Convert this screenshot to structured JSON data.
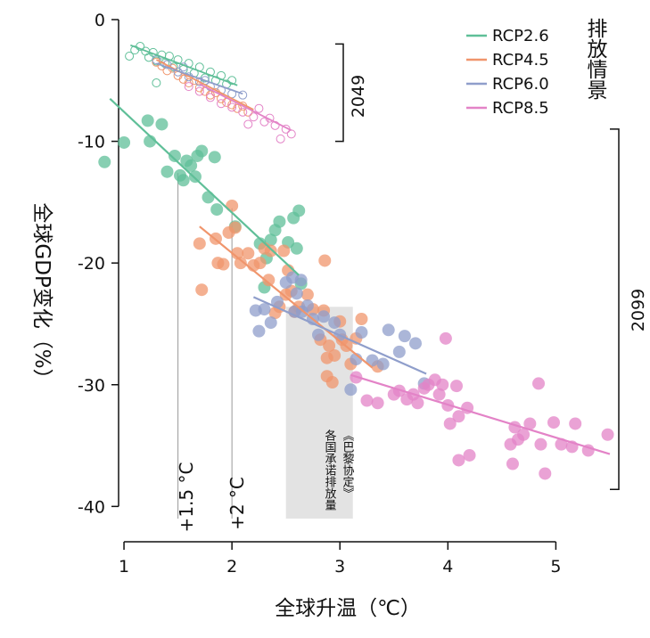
{
  "chart_data": {
    "type": "scatter",
    "xlabel": "全球升温（℃）",
    "ylabel": "全球GDP变化（%）",
    "xlim": [
      0.95,
      5.55
    ],
    "ylim": [
      -41,
      0
    ],
    "x_ticks": [
      "1",
      "2",
      "3",
      "4",
      "5"
    ],
    "y_ticks": [
      "0",
      "-10",
      "-20",
      "-30",
      "-40"
    ],
    "legend_title": "排放情景",
    "series": [
      {
        "name": "RCP2.6",
        "color": "#5fbf98",
        "points_2099": [
          [
            0.82,
            -11.7
          ],
          [
            1.0,
            -10.1
          ],
          [
            1.22,
            -8.3
          ],
          [
            1.24,
            -10.0
          ],
          [
            1.35,
            -8.6
          ],
          [
            1.4,
            -12.5
          ],
          [
            1.47,
            -11.2
          ],
          [
            1.52,
            -12.8
          ],
          [
            1.55,
            -13.2
          ],
          [
            1.58,
            -11.6
          ],
          [
            1.62,
            -12.0
          ],
          [
            1.66,
            -12.9
          ],
          [
            1.68,
            -11.2
          ],
          [
            1.72,
            -10.8
          ],
          [
            1.78,
            -14.6
          ],
          [
            1.84,
            -11.3
          ],
          [
            1.86,
            -15.6
          ],
          [
            2.03,
            -17.0
          ],
          [
            2.26,
            -18.4
          ],
          [
            2.3,
            -22.0
          ],
          [
            2.32,
            -19.6
          ],
          [
            2.36,
            -18.1
          ],
          [
            2.4,
            -17.3
          ],
          [
            2.44,
            -16.6
          ],
          [
            2.52,
            -18.3
          ],
          [
            2.57,
            -16.3
          ],
          [
            2.62,
            -15.7
          ],
          [
            2.6,
            -18.8
          ],
          [
            2.64,
            -21.7
          ]
        ],
        "points_2049": [
          [
            1.05,
            -3.0
          ],
          [
            1.1,
            -2.5
          ],
          [
            1.15,
            -2.2
          ],
          [
            1.2,
            -2.6
          ],
          [
            1.23,
            -3.1
          ],
          [
            1.27,
            -2.7
          ],
          [
            1.3,
            -3.4
          ],
          [
            1.35,
            -2.9
          ],
          [
            1.38,
            -3.6
          ],
          [
            1.42,
            -3.0
          ],
          [
            1.46,
            -3.9
          ],
          [
            1.5,
            -3.3
          ],
          [
            1.55,
            -4.1
          ],
          [
            1.6,
            -3.6
          ],
          [
            1.65,
            -4.4
          ],
          [
            1.7,
            -3.9
          ],
          [
            1.75,
            -4.8
          ],
          [
            1.8,
            -4.3
          ],
          [
            1.85,
            -5.0
          ],
          [
            1.9,
            -4.6
          ],
          [
            1.95,
            -5.3
          ],
          [
            2.0,
            -5.0
          ],
          [
            1.3,
            -5.2
          ]
        ],
        "trend_2099": [
          [
            0.87,
            -6.5
          ],
          [
            2.62,
            -21.0
          ]
        ],
        "trend_2049": [
          [
            1.06,
            -2.1
          ],
          [
            2.05,
            -5.4
          ]
        ]
      },
      {
        "name": "RCP4.5",
        "color": "#f0956c",
        "points_2099": [
          [
            1.7,
            -18.4
          ],
          [
            1.72,
            -22.2
          ],
          [
            1.85,
            -18.0
          ],
          [
            1.87,
            -20.0
          ],
          [
            1.92,
            -20.1
          ],
          [
            1.97,
            -17.5
          ],
          [
            2.0,
            -15.3
          ],
          [
            2.03,
            -17.1
          ],
          [
            2.05,
            -19.2
          ],
          [
            2.08,
            -20.0
          ],
          [
            2.15,
            -19.2
          ],
          [
            2.2,
            -20.2
          ],
          [
            2.26,
            -20.0
          ],
          [
            2.3,
            -18.8
          ],
          [
            2.34,
            -21.4
          ],
          [
            2.36,
            -19.0
          ],
          [
            2.4,
            -24.1
          ],
          [
            2.44,
            -23.6
          ],
          [
            2.48,
            -19.0
          ],
          [
            2.5,
            -22.6
          ],
          [
            2.52,
            -20.6
          ],
          [
            2.55,
            -22.3
          ],
          [
            2.58,
            -24.0
          ],
          [
            2.62,
            -23.6
          ],
          [
            2.7,
            -22.6
          ],
          [
            2.75,
            -23.8
          ],
          [
            2.82,
            -26.3
          ],
          [
            2.85,
            -23.9
          ],
          [
            2.88,
            -29.3
          ],
          [
            2.9,
            -26.8
          ],
          [
            2.95,
            -27.6
          ],
          [
            3.0,
            -24.8
          ],
          [
            3.02,
            -26.3
          ],
          [
            3.06,
            -26.8
          ],
          [
            3.1,
            -28.3
          ],
          [
            3.15,
            -26.2
          ],
          [
            3.2,
            -24.6
          ],
          [
            3.35,
            -28.5
          ],
          [
            2.88,
            -27.8
          ],
          [
            2.93,
            -29.8
          ],
          [
            2.86,
            -19.8
          ]
        ],
        "points_2049": [
          [
            1.3,
            -3.5
          ],
          [
            1.35,
            -3.8
          ],
          [
            1.4,
            -4.2
          ],
          [
            1.45,
            -4.0
          ],
          [
            1.5,
            -4.6
          ],
          [
            1.55,
            -4.9
          ],
          [
            1.6,
            -5.2
          ],
          [
            1.65,
            -5.0
          ],
          [
            1.7,
            -5.6
          ],
          [
            1.75,
            -5.9
          ],
          [
            1.8,
            -6.2
          ],
          [
            1.85,
            -6.0
          ],
          [
            1.9,
            -6.5
          ],
          [
            1.95,
            -6.8
          ],
          [
            2.0,
            -7.0
          ],
          [
            2.05,
            -7.3
          ],
          [
            2.1,
            -7.1
          ],
          [
            2.15,
            -7.6
          ]
        ],
        "trend_2099": [
          [
            1.7,
            -17.0
          ],
          [
            3.3,
            -28.6
          ]
        ],
        "trend_2049": [
          [
            1.3,
            -3.3
          ],
          [
            2.2,
            -7.4
          ]
        ]
      },
      {
        "name": "RCP6.0",
        "color": "#8f9ecb",
        "points_2099": [
          [
            2.22,
            -23.9
          ],
          [
            2.25,
            -25.6
          ],
          [
            2.3,
            -23.8
          ],
          [
            2.36,
            -24.9
          ],
          [
            2.42,
            -23.2
          ],
          [
            2.5,
            -21.6
          ],
          [
            2.56,
            -21.2
          ],
          [
            2.6,
            -22.5
          ],
          [
            2.65,
            -24.0
          ],
          [
            2.7,
            -23.5
          ],
          [
            2.75,
            -24.6
          ],
          [
            2.8,
            -25.9
          ],
          [
            2.85,
            -24.4
          ],
          [
            2.95,
            -24.9
          ],
          [
            3.0,
            -25.9
          ],
          [
            3.1,
            -30.4
          ],
          [
            3.15,
            -27.9
          ],
          [
            3.2,
            -25.7
          ],
          [
            3.3,
            -28.0
          ],
          [
            3.4,
            -28.3
          ],
          [
            3.45,
            -25.5
          ],
          [
            3.55,
            -27.3
          ],
          [
            3.6,
            -26.0
          ],
          [
            3.7,
            -26.6
          ],
          [
            3.78,
            -29.9
          ],
          [
            2.64,
            -21.4
          ],
          [
            2.58,
            -24.0
          ]
        ],
        "points_2049": [
          [
            1.3,
            -3.3
          ],
          [
            1.4,
            -3.7
          ],
          [
            1.5,
            -4.3
          ],
          [
            1.6,
            -4.7
          ],
          [
            1.7,
            -5.1
          ],
          [
            1.8,
            -5.5
          ],
          [
            1.9,
            -5.8
          ],
          [
            2.0,
            -6.1
          ],
          [
            2.1,
            -6.2
          ],
          [
            1.55,
            -3.9
          ],
          [
            1.75,
            -5.0
          ]
        ],
        "trend_2099": [
          [
            2.2,
            -22.8
          ],
          [
            3.8,
            -29.1
          ]
        ],
        "trend_2049": [
          [
            1.3,
            -3.6
          ],
          [
            2.1,
            -6.1
          ]
        ]
      },
      {
        "name": "RCP8.5",
        "color": "#e383c7",
        "points_2099": [
          [
            3.15,
            -29.4
          ],
          [
            3.25,
            -31.3
          ],
          [
            3.35,
            -31.5
          ],
          [
            3.5,
            -30.8
          ],
          [
            3.55,
            -30.5
          ],
          [
            3.62,
            -31.2
          ],
          [
            3.68,
            -30.8
          ],
          [
            3.72,
            -31.5
          ],
          [
            3.78,
            -30.3
          ],
          [
            3.82,
            -30.0
          ],
          [
            3.88,
            -29.6
          ],
          [
            3.92,
            -30.8
          ],
          [
            3.95,
            -30.0
          ],
          [
            3.98,
            -26.2
          ],
          [
            4.0,
            -31.7
          ],
          [
            4.02,
            -33.2
          ],
          [
            4.08,
            -30.1
          ],
          [
            4.1,
            -32.6
          ],
          [
            4.18,
            -31.9
          ],
          [
            4.2,
            -35.8
          ],
          [
            4.1,
            -36.2
          ],
          [
            4.58,
            -34.9
          ],
          [
            4.62,
            -33.5
          ],
          [
            4.6,
            -36.5
          ],
          [
            4.65,
            -34.5
          ],
          [
            4.7,
            -34.1
          ],
          [
            4.76,
            -33.2
          ],
          [
            4.84,
            -29.9
          ],
          [
            4.86,
            -34.9
          ],
          [
            4.9,
            -37.3
          ],
          [
            4.98,
            -33.1
          ],
          [
            5.05,
            -34.9
          ],
          [
            5.15,
            -35.1
          ],
          [
            5.18,
            -33.2
          ],
          [
            5.3,
            -35.4
          ],
          [
            5.48,
            -34.1
          ]
        ],
        "points_2049": [
          [
            1.6,
            -5.5
          ],
          [
            1.7,
            -5.9
          ],
          [
            1.8,
            -6.4
          ],
          [
            1.9,
            -6.9
          ],
          [
            2.0,
            -7.2
          ],
          [
            2.1,
            -7.6
          ],
          [
            2.2,
            -8.0
          ],
          [
            2.3,
            -8.4
          ],
          [
            2.4,
            -8.7
          ],
          [
            2.5,
            -9.0
          ],
          [
            2.55,
            -9.4
          ],
          [
            2.45,
            -9.8
          ],
          [
            2.35,
            -8.1
          ],
          [
            2.25,
            -7.3
          ],
          [
            2.15,
            -8.6
          ]
        ],
        "trend_2099": [
          [
            3.1,
            -29.2
          ],
          [
            5.5,
            -35.7
          ]
        ],
        "trend_2049": [
          [
            1.7,
            -5.3
          ],
          [
            2.55,
            -9.1
          ]
        ]
      }
    ],
    "annotations": {
      "vline_15": {
        "x": 1.5,
        "label": "+1.5 °C"
      },
      "vline_2": {
        "x": 2.0,
        "label": "+2 °C"
      },
      "band": {
        "x_range": [
          2.5,
          3.12
        ],
        "label_line1": "各国承诺排放量",
        "label_line2": "《巴黎协定》"
      },
      "bracket_2049": {
        "y_range": [
          -2.0,
          -10.0
        ],
        "label": "2049"
      },
      "bracket_2099": {
        "y_range": [
          -9.0,
          -38.6
        ],
        "label": "2099"
      }
    }
  }
}
